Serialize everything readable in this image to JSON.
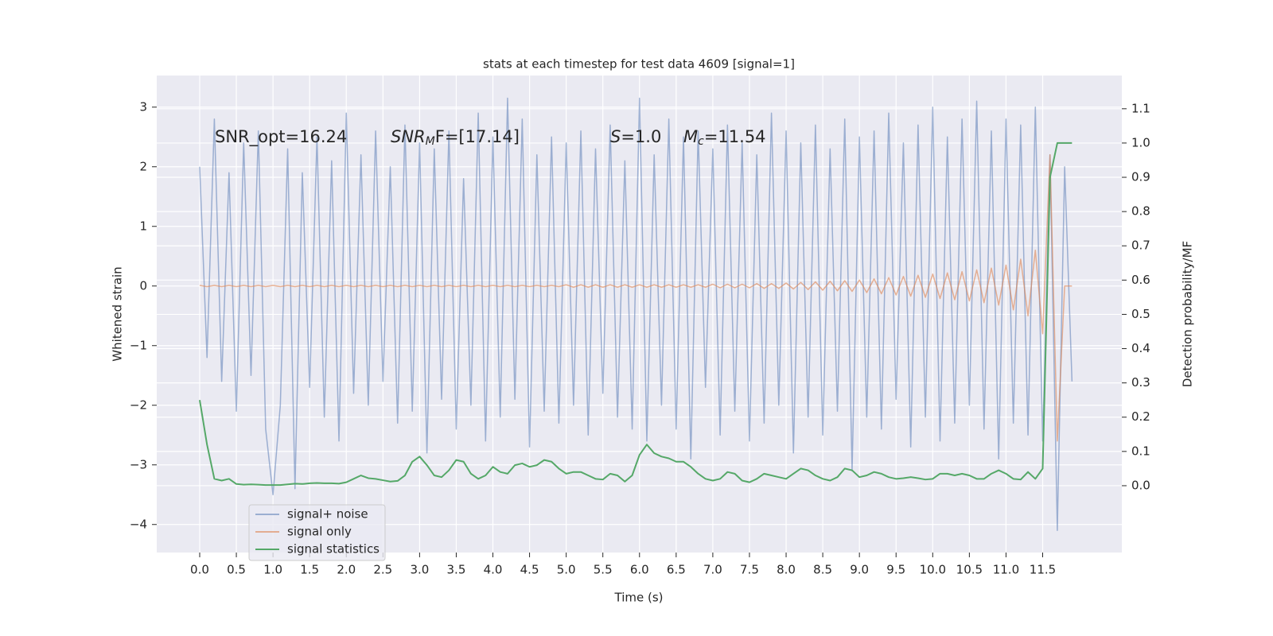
{
  "chart_data": {
    "type": "line",
    "title": "stats at each timestep for test data 4609 [signal=1]",
    "xlabel": "Time (s)",
    "ylabel": "Whitened strain",
    "y2label": "Detection probability/MF",
    "annotations": [
      {
        "text": "SNR_opt=16.24"
      },
      {
        "text": "SNR",
        "sub": "M",
        "rest": "F=[17.14]"
      },
      {
        "text": "S",
        "rest": "=1.0"
      },
      {
        "text": "M",
        "sub": "c",
        "rest": "=11.54"
      }
    ],
    "x": [
      0,
      0.1,
      0.2,
      0.3,
      0.4,
      0.5,
      0.6,
      0.7,
      0.8,
      0.9,
      1,
      1.1,
      1.2,
      1.3,
      1.4,
      1.5,
      1.6,
      1.7,
      1.8,
      1.9,
      2,
      2.1,
      2.2,
      2.3,
      2.4,
      2.5,
      2.6,
      2.7,
      2.8,
      2.9,
      3,
      3.1,
      3.2,
      3.3,
      3.4,
      3.5,
      3.6,
      3.7,
      3.8,
      3.9,
      4,
      4.1,
      4.2,
      4.3,
      4.4,
      4.5,
      4.6,
      4.7,
      4.8,
      4.9,
      5,
      5.1,
      5.2,
      5.3,
      5.4,
      5.5,
      5.6,
      5.7,
      5.8,
      5.9,
      6,
      6.1,
      6.2,
      6.3,
      6.4,
      6.5,
      6.6,
      6.7,
      6.8,
      6.9,
      7,
      7.1,
      7.2,
      7.3,
      7.4,
      7.5,
      7.6,
      7.7,
      7.8,
      7.9,
      8,
      8.1,
      8.2,
      8.3,
      8.4,
      8.5,
      8.6,
      8.7,
      8.8,
      8.9,
      9,
      9.1,
      9.2,
      9.3,
      9.4,
      9.5,
      9.6,
      9.7,
      9.8,
      9.9,
      10,
      10.1,
      10.2,
      10.3,
      10.4,
      10.5,
      10.6,
      10.7,
      10.8,
      10.9,
      11,
      11.1,
      11.2,
      11.3,
      11.4,
      11.5,
      11.6,
      11.7,
      11.8,
      11.9
    ],
    "series": [
      {
        "name": "signal+ noise",
        "color": "#4c72b0",
        "opacity": 0.5,
        "axis": "y",
        "values": [
          2.0,
          -1.2,
          2.8,
          -1.6,
          1.9,
          -2.1,
          2.4,
          -1.5,
          2.6,
          -2.4,
          -3.5,
          -2.0,
          2.3,
          -3.4,
          1.9,
          -1.7,
          2.5,
          -2.2,
          2.1,
          -2.6,
          2.9,
          -1.8,
          2.2,
          -2.0,
          2.6,
          -1.6,
          2.0,
          -2.3,
          2.7,
          -2.1,
          2.4,
          -2.8,
          2.3,
          -1.9,
          2.6,
          -2.4,
          1.8,
          -2.0,
          2.9,
          -2.6,
          2.5,
          -2.2,
          3.15,
          -1.9,
          2.8,
          -2.7,
          2.2,
          -2.1,
          2.5,
          -2.3,
          2.4,
          -2.0,
          2.6,
          -2.5,
          2.3,
          -1.8,
          2.7,
          -2.2,
          2.1,
          -2.4,
          3.15,
          -2.6,
          2.2,
          -2.0,
          2.8,
          -2.4,
          2.5,
          -2.9,
          2.6,
          -1.7,
          2.3,
          -2.5,
          2.7,
          -2.1,
          2.4,
          -2.6,
          2.2,
          -2.3,
          2.9,
          -2.0,
          2.6,
          -2.8,
          2.4,
          -2.2,
          2.7,
          -2.5,
          2.3,
          -2.1,
          2.8,
          -3.1,
          2.5,
          -2.2,
          2.6,
          -2.4,
          2.9,
          -1.9,
          2.4,
          -2.7,
          2.7,
          -2.2,
          3.0,
          -2.6,
          2.5,
          -2.3,
          2.8,
          -2.0,
          3.1,
          -2.4,
          2.6,
          -2.9,
          2.8,
          -2.3,
          2.7,
          -2.5,
          3.0,
          -2.6,
          2.2,
          -4.1,
          2.0,
          -1.6
        ]
      },
      {
        "name": "signal only",
        "color": "#dd8452",
        "opacity": 0.6,
        "axis": "y",
        "values": [
          0.01,
          -0.01,
          0.01,
          -0.01,
          0.01,
          -0.01,
          0.01,
          -0.01,
          0.01,
          -0.01,
          0.01,
          -0.01,
          0.01,
          -0.01,
          0.01,
          -0.01,
          0.01,
          -0.01,
          0.01,
          -0.01,
          0.01,
          -0.01,
          0.01,
          -0.01,
          0.01,
          -0.01,
          0.01,
          -0.01,
          0.01,
          -0.01,
          0.01,
          -0.01,
          0.01,
          -0.01,
          0.01,
          -0.01,
          0.01,
          -0.01,
          0.01,
          -0.01,
          0.01,
          -0.01,
          0.01,
          -0.01,
          0.01,
          -0.01,
          0.01,
          -0.01,
          0.01,
          -0.01,
          0.02,
          -0.02,
          0.02,
          -0.02,
          0.02,
          -0.02,
          0.02,
          -0.02,
          0.02,
          -0.02,
          0.02,
          -0.02,
          0.02,
          -0.02,
          0.02,
          -0.02,
          0.02,
          -0.02,
          0.02,
          -0.02,
          0.03,
          -0.03,
          0.03,
          -0.03,
          0.03,
          -0.03,
          0.04,
          -0.04,
          0.04,
          -0.04,
          0.05,
          -0.05,
          0.06,
          -0.06,
          0.07,
          -0.07,
          0.08,
          -0.08,
          0.09,
          -0.09,
          0.1,
          -0.11,
          0.12,
          -0.13,
          0.14,
          -0.15,
          0.16,
          -0.17,
          0.18,
          -0.19,
          0.2,
          -0.21,
          0.22,
          -0.23,
          0.24,
          -0.25,
          0.27,
          -0.28,
          0.3,
          -0.32,
          0.35,
          -0.4,
          0.45,
          -0.5,
          0.6,
          -0.8,
          2.2,
          -2.6,
          0,
          0
        ]
      },
      {
        "name": "signal statistics",
        "color": "#55a868",
        "opacity": 1,
        "axis": "y2",
        "values": [
          0.25,
          0.12,
          0.02,
          0.015,
          0.02,
          0.005,
          0.003,
          0.004,
          0.003,
          0.002,
          0.002,
          0.002,
          0.004,
          0.006,
          0.005,
          0.007,
          0.008,
          0.007,
          0.007,
          0.006,
          0.01,
          0.02,
          0.03,
          0.022,
          0.02,
          0.016,
          0.012,
          0.014,
          0.03,
          0.07,
          0.085,
          0.06,
          0.03,
          0.025,
          0.045,
          0.075,
          0.07,
          0.035,
          0.02,
          0.03,
          0.055,
          0.04,
          0.035,
          0.06,
          0.065,
          0.055,
          0.06,
          0.075,
          0.07,
          0.05,
          0.035,
          0.04,
          0.04,
          0.03,
          0.02,
          0.018,
          0.035,
          0.03,
          0.012,
          0.03,
          0.09,
          0.12,
          0.095,
          0.085,
          0.08,
          0.07,
          0.07,
          0.055,
          0.035,
          0.02,
          0.015,
          0.02,
          0.04,
          0.035,
          0.015,
          0.01,
          0.02,
          0.035,
          0.03,
          0.025,
          0.02,
          0.035,
          0.05,
          0.045,
          0.03,
          0.02,
          0.015,
          0.025,
          0.05,
          0.045,
          0.025,
          0.03,
          0.04,
          0.035,
          0.025,
          0.02,
          0.022,
          0.025,
          0.022,
          0.018,
          0.02,
          0.035,
          0.035,
          0.03,
          0.035,
          0.03,
          0.02,
          0.02,
          0.035,
          0.045,
          0.035,
          0.02,
          0.018,
          0.04,
          0.02,
          0.05,
          0.9,
          1.0,
          1.0,
          1.0
        ]
      }
    ],
    "xlim": [
      -0.586,
      12.58
    ],
    "ylim": [
      -4.47,
      3.53
    ],
    "y2lim": [
      -0.195,
      1.197
    ],
    "xticks": [
      {
        "value": 0,
        "label": "0.0"
      },
      0.5,
      {
        "value": 1,
        "label": "1.0"
      },
      1.5,
      {
        "value": 2,
        "label": "2.0"
      },
      2.5,
      {
        "value": 3,
        "label": "3.0"
      },
      3.5,
      {
        "value": 4,
        "label": "4.0"
      },
      4.5,
      {
        "value": 5,
        "label": "5.0"
      },
      5.5,
      {
        "value": 6,
        "label": "6.0"
      },
      6.5,
      {
        "value": 7,
        "label": "7.0"
      },
      7.5,
      {
        "value": 8,
        "label": "8.0"
      },
      8.5,
      {
        "value": 9,
        "label": "9.0"
      },
      9.5,
      {
        "value": 10,
        "label": "10.0"
      },
      10.5,
      {
        "value": 11,
        "label": "11.0"
      },
      11.5
    ],
    "yticks": [
      {
        "value": -4,
        "label": "−4"
      },
      {
        "value": -3,
        "label": "−3"
      },
      {
        "value": -2,
        "label": "−2"
      },
      {
        "value": -1,
        "label": "−1"
      },
      0,
      1,
      2,
      3
    ],
    "y2ticks": [
      {
        "value": 0,
        "label": "0.0"
      },
      0.1,
      0.2,
      0.3,
      0.4,
      0.5,
      0.6,
      0.7,
      0.8,
      0.9,
      {
        "value": 1,
        "label": "1.0"
      },
      1.1
    ],
    "grid": true,
    "legend": "lower left"
  }
}
